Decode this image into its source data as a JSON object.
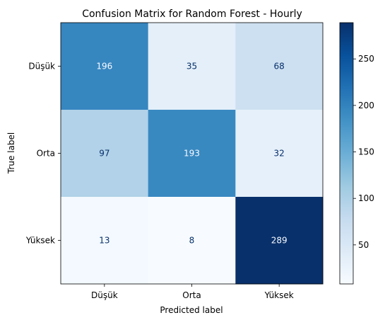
{
  "chart_data": {
    "type": "heatmap",
    "title": "Confusion Matrix for Random Forest - Hourly",
    "xlabel": "Predicted label",
    "ylabel": "True label",
    "x_categories": [
      "Düşük",
      "Orta",
      "Yüksek"
    ],
    "y_categories": [
      "Düşük",
      "Orta",
      "Yüksek"
    ],
    "values": [
      [
        196,
        35,
        68
      ],
      [
        97,
        193,
        32
      ],
      [
        13,
        8,
        289
      ]
    ],
    "colormap": "Blues",
    "color_range": [
      8,
      289
    ],
    "colorbar_ticks": [
      50,
      100,
      150,
      200,
      250
    ],
    "grid": false,
    "colors": {
      "cmap_low": "#f7fbff",
      "cmap_high": "#08306b",
      "text_dark": "#08306b",
      "text_light": "#f7fbff"
    }
  }
}
